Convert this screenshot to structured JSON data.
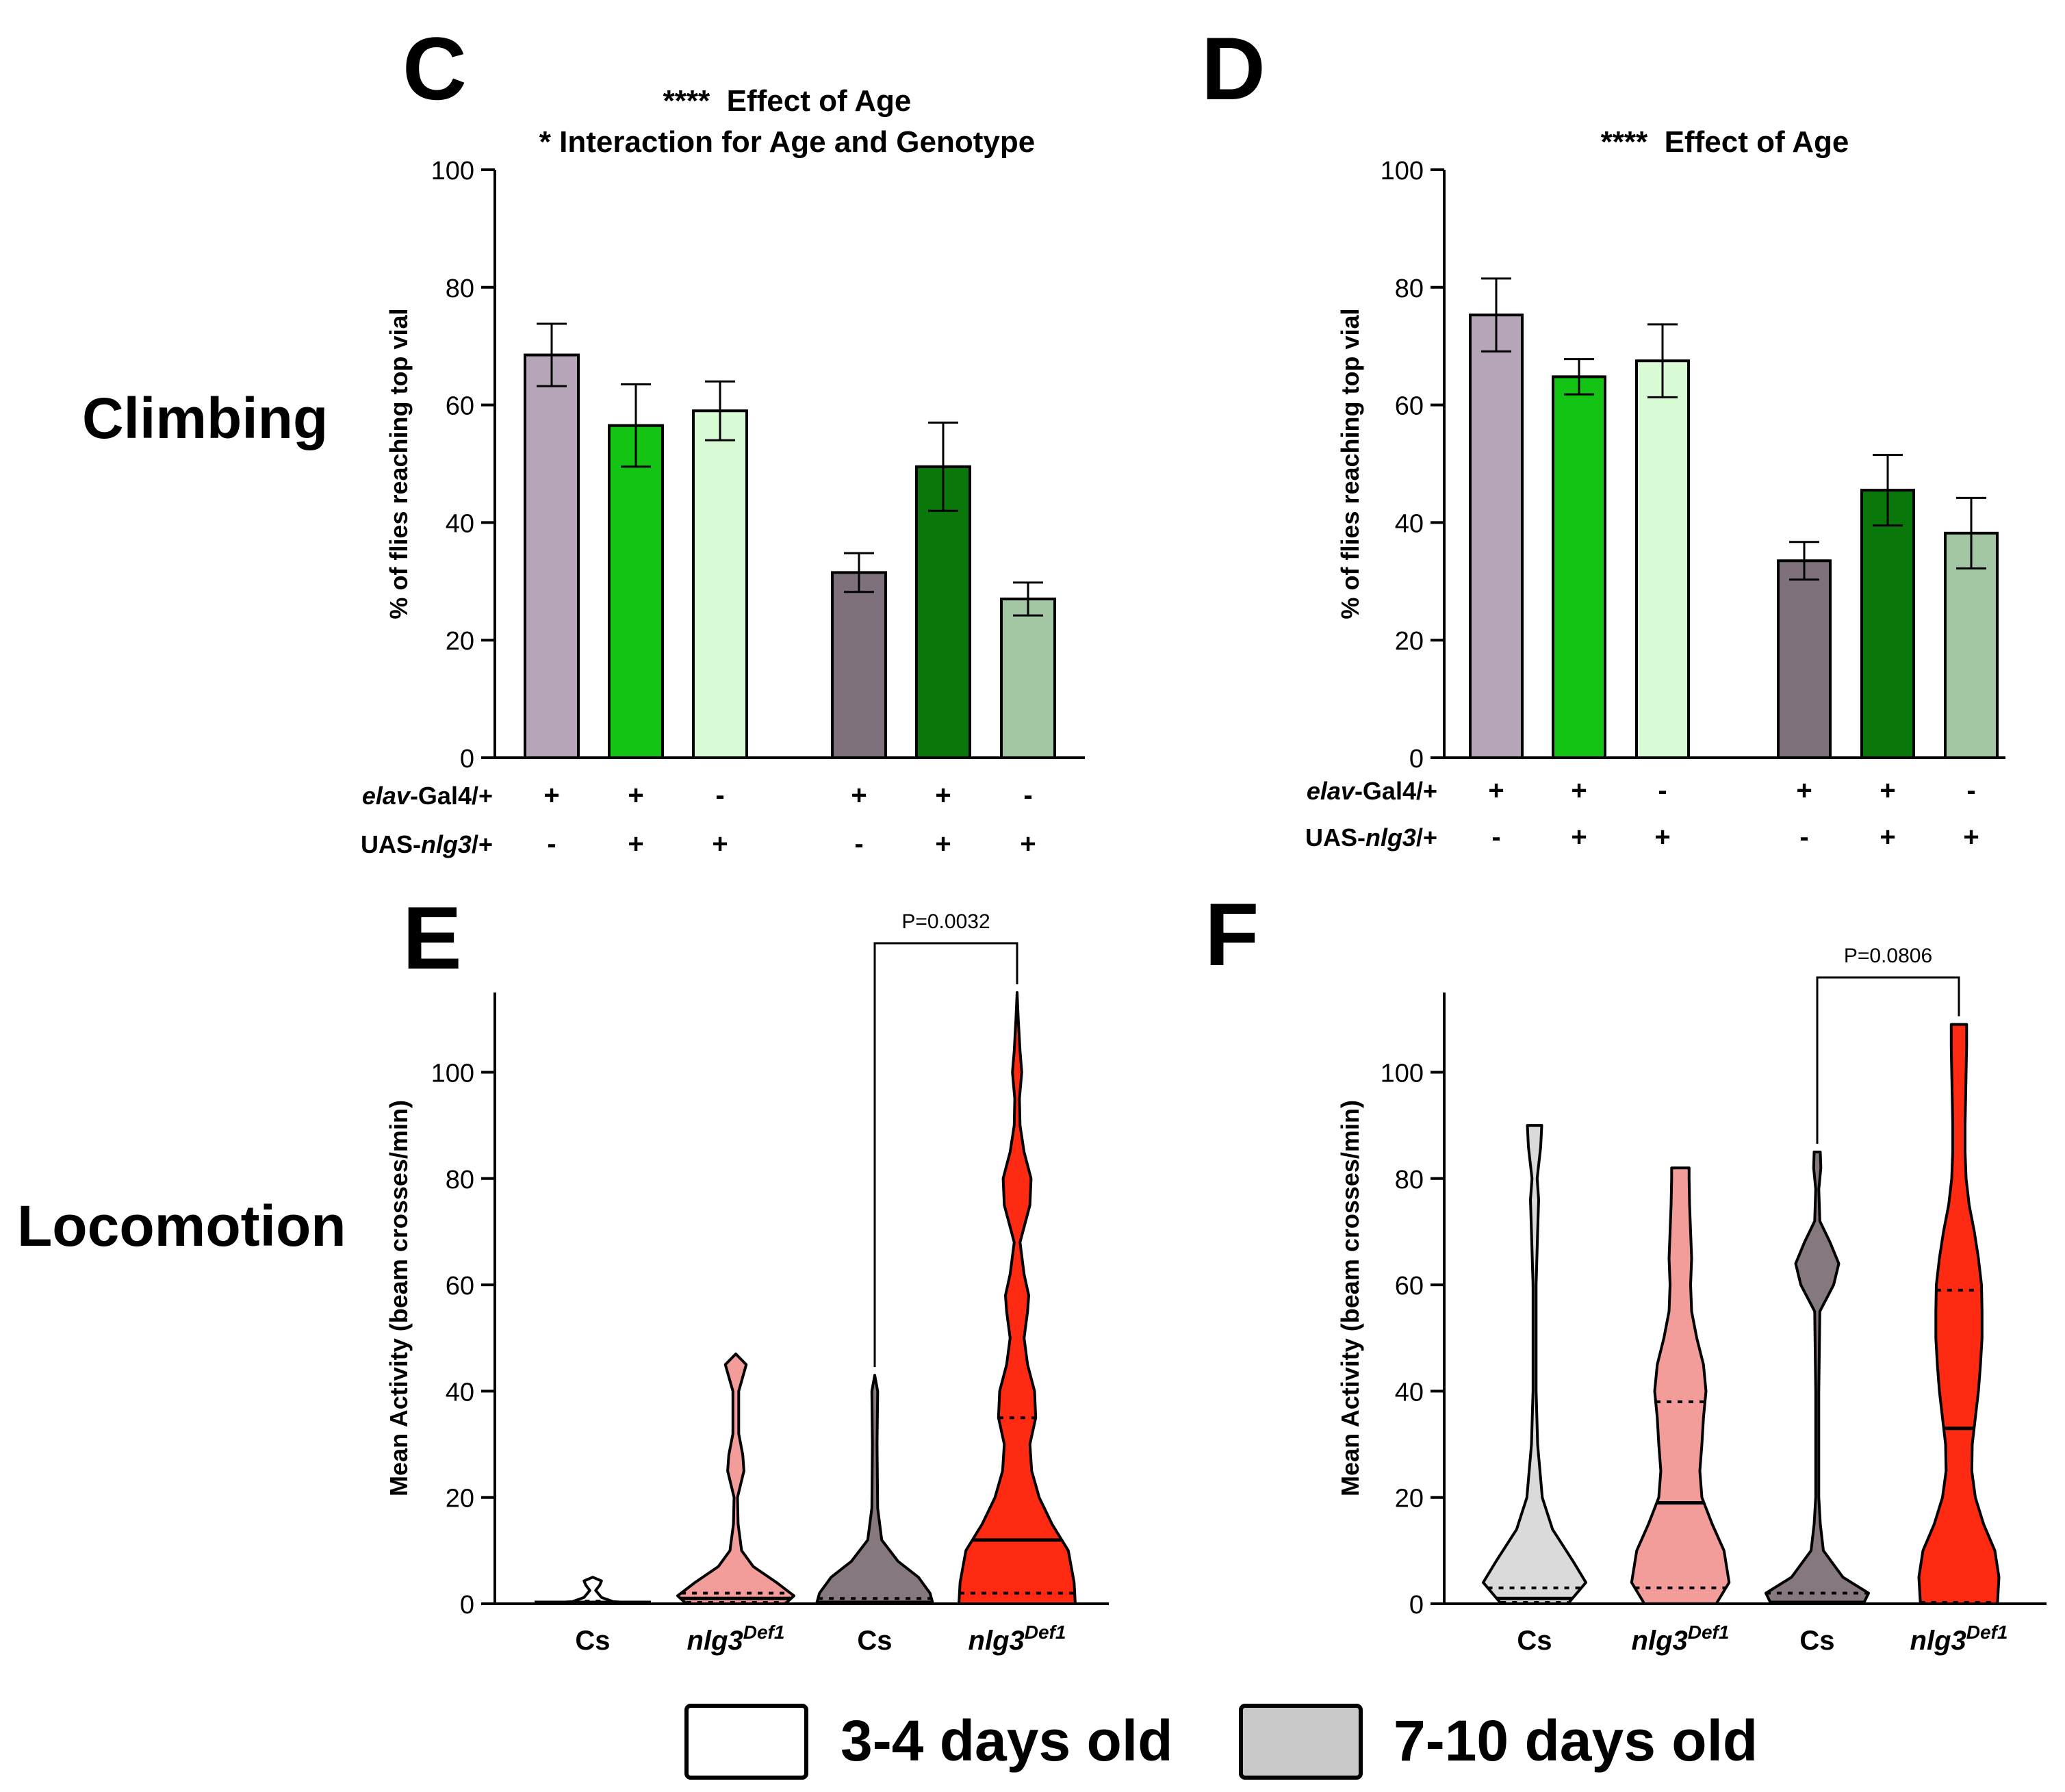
{
  "row_labels": {
    "climbing": "Climbing",
    "locomotion": "Locomotion"
  },
  "legend": {
    "items": [
      {
        "label": "3-4 days old",
        "color": "#ffffff"
      },
      {
        "label": "7-10 days old",
        "color": "#c8c8c8"
      }
    ]
  },
  "colors": {
    "young": [
      "#b6a5b8",
      "#14c414",
      "#d8fbd6"
    ],
    "old": [
      "#7e717c",
      "#0a770a",
      "#a3c6a3"
    ],
    "violin": [
      "#ffffff",
      "#f29d9a",
      "#85787f",
      "#ff2a12"
    ],
    "violin_old_panel": [
      "#dadada",
      "#f29d9a",
      "#85787f",
      "#ff2a12"
    ]
  },
  "genotype_rows": {
    "row1": {
      "prefix": "elav",
      "suffix": "-Gal4/+"
    },
    "row2": {
      "prefix": "UAS-",
      "italic": "nlg3",
      "suffix": "/+"
    }
  },
  "chart_data": [
    {
      "panel": "C",
      "type": "bar",
      "annotations": [
        "****  Effect of Age",
        "* Interaction for Age and Genotype"
      ],
      "ylabel": "% of flies reaching top vial",
      "ylim": [
        0,
        100
      ],
      "yticks": [
        "0",
        "20",
        "40",
        "60",
        "80",
        "100"
      ],
      "groups": [
        "3-4 days old",
        "7-10 days old"
      ],
      "values": [
        68.5,
        56.5,
        59,
        31.5,
        49.5,
        27
      ],
      "errors": [
        5.3,
        7,
        5,
        3.3,
        7.5,
        2.8
      ],
      "genotype_marks": {
        "row1": [
          "+",
          "+",
          "-",
          "+",
          "+",
          "-"
        ],
        "row2": [
          "-",
          "+",
          "+",
          "-",
          "+",
          "+"
        ]
      }
    },
    {
      "panel": "D",
      "type": "bar",
      "annotations": [
        "****  Effect of Age"
      ],
      "ylabel": "% of flies reaching top vial",
      "ylim": [
        0,
        100
      ],
      "yticks": [
        "0",
        "20",
        "40",
        "60",
        "80",
        "100"
      ],
      "groups": [
        "3-4 days old",
        "7-10 days old"
      ],
      "values": [
        75.3,
        64.8,
        67.5,
        33.5,
        45.5,
        38.2
      ],
      "errors": [
        6.2,
        3,
        6.2,
        3.2,
        6,
        6
      ],
      "genotype_marks": {
        "row1": [
          "+",
          "+",
          "-",
          "+",
          "+",
          "-"
        ],
        "row2": [
          "-",
          "+",
          "+",
          "-",
          "+",
          "+"
        ]
      }
    },
    {
      "panel": "E",
      "type": "violin",
      "ylabel": "Mean Activity (beam crosses/min)",
      "ylim": [
        0,
        115
      ],
      "yticks": [
        "0",
        "20",
        "40",
        "60",
        "80",
        "100"
      ],
      "categories": [
        "Cs",
        "nlg3",
        "Cs",
        "nlg3"
      ],
      "category_superscripts": [
        "",
        "Def1",
        "",
        "Def1"
      ],
      "violins": [
        {
          "max": 5,
          "median": 0,
          "q1": 0,
          "q3": 0.5,
          "profile": [
            [
              0,
              1
            ],
            [
              0.4,
              0.35
            ],
            [
              1.2,
              0.15
            ],
            [
              2.5,
              0.05
            ],
            [
              3.5,
              0.12
            ],
            [
              4.3,
              0.15
            ],
            [
              5,
              0
            ]
          ]
        },
        {
          "max": 47,
          "median": 1,
          "q1": 0,
          "q3": 2,
          "profile": [
            [
              0,
              0.85
            ],
            [
              1.5,
              1
            ],
            [
              4,
              0.7
            ],
            [
              7,
              0.3
            ],
            [
              10,
              0.1
            ],
            [
              15,
              0.04
            ],
            [
              20,
              0.03
            ],
            [
              25,
              0.14
            ],
            [
              28,
              0.12
            ],
            [
              32,
              0.05
            ],
            [
              40,
              0.05
            ],
            [
              45,
              0.18
            ],
            [
              47,
              0
            ]
          ]
        },
        {
          "max": 43,
          "median": 0,
          "q1": 0,
          "q3": 1,
          "profile": [
            [
              0,
              1
            ],
            [
              2,
              0.95
            ],
            [
              5,
              0.75
            ],
            [
              8,
              0.4
            ],
            [
              12,
              0.12
            ],
            [
              18,
              0.05
            ],
            [
              30,
              0.04
            ],
            [
              40,
              0.05
            ],
            [
              43,
              0
            ]
          ]
        },
        {
          "max": 115,
          "median": 12,
          "q1": 2,
          "q3": 35,
          "profile": [
            [
              0,
              1
            ],
            [
              4,
              0.98
            ],
            [
              10,
              0.88
            ],
            [
              15,
              0.6
            ],
            [
              20,
              0.38
            ],
            [
              25,
              0.25
            ],
            [
              30,
              0.22
            ],
            [
              35,
              0.32
            ],
            [
              40,
              0.3
            ],
            [
              45,
              0.18
            ],
            [
              50,
              0.12
            ],
            [
              55,
              0.18
            ],
            [
              58,
              0.2
            ],
            [
              62,
              0.12
            ],
            [
              68,
              0.05
            ],
            [
              75,
              0.22
            ],
            [
              80,
              0.24
            ],
            [
              85,
              0.12
            ],
            [
              90,
              0.05
            ],
            [
              95,
              0.04
            ],
            [
              100,
              0.08
            ],
            [
              104,
              0.05
            ],
            [
              110,
              0.02
            ],
            [
              115,
              0
            ]
          ]
        }
      ],
      "comparison": {
        "label": "P=0.0032",
        "between": [
          2,
          3
        ]
      }
    },
    {
      "panel": "F",
      "type": "violin",
      "ylabel": "Mean Activity (beam crosses/min)",
      "ylim": [
        0,
        115
      ],
      "yticks": [
        "0",
        "20",
        "40",
        "60",
        "80",
        "100"
      ],
      "categories": [
        "Cs",
        "nlg3",
        "Cs",
        "nlg3"
      ],
      "category_superscripts": [
        "",
        "Def1",
        "",
        "Def1"
      ],
      "violins": [
        {
          "max": 90,
          "median": 1,
          "q1": 0,
          "q3": 3,
          "profile": [
            [
              0,
              0.65
            ],
            [
              4,
              1
            ],
            [
              8,
              0.75
            ],
            [
              14,
              0.35
            ],
            [
              20,
              0.15
            ],
            [
              30,
              0.06
            ],
            [
              40,
              0.03
            ],
            [
              50,
              0.03
            ],
            [
              60,
              0.03
            ],
            [
              70,
              0.06
            ],
            [
              76,
              0.08
            ],
            [
              80,
              0.05
            ],
            [
              86,
              0.12
            ],
            [
              90,
              0.14
            ]
          ]
        },
        {
          "max": 82,
          "median": 19,
          "q1": 3,
          "q3": 38,
          "profile": [
            [
              0,
              0.7
            ],
            [
              4,
              0.95
            ],
            [
              10,
              0.85
            ],
            [
              15,
              0.62
            ],
            [
              20,
              0.42
            ],
            [
              25,
              0.38
            ],
            [
              30,
              0.42
            ],
            [
              35,
              0.45
            ],
            [
              40,
              0.5
            ],
            [
              45,
              0.45
            ],
            [
              50,
              0.32
            ],
            [
              55,
              0.22
            ],
            [
              60,
              0.2
            ],
            [
              65,
              0.22
            ],
            [
              70,
              0.2
            ],
            [
              75,
              0.18
            ],
            [
              80,
              0.17
            ],
            [
              82,
              0.17
            ]
          ]
        },
        {
          "max": 85,
          "median": 0,
          "q1": 0,
          "q3": 2,
          "profile": [
            [
              0,
              0.9
            ],
            [
              2,
              1
            ],
            [
              5,
              0.5
            ],
            [
              10,
              0.12
            ],
            [
              15,
              0.06
            ],
            [
              20,
              0.03
            ],
            [
              40,
              0.03
            ],
            [
              55,
              0.05
            ],
            [
              60,
              0.32
            ],
            [
              64,
              0.42
            ],
            [
              68,
              0.25
            ],
            [
              72,
              0.05
            ],
            [
              78,
              0.03
            ],
            [
              82,
              0.07
            ],
            [
              85,
              0.06
            ]
          ]
        },
        {
          "max": 109,
          "median": 33,
          "q1": 0,
          "q3": 59,
          "profile": [
            [
              0,
              0.75
            ],
            [
              5,
              0.78
            ],
            [
              10,
              0.7
            ],
            [
              15,
              0.48
            ],
            [
              20,
              0.32
            ],
            [
              25,
              0.25
            ],
            [
              30,
              0.26
            ],
            [
              35,
              0.32
            ],
            [
              40,
              0.38
            ],
            [
              45,
              0.42
            ],
            [
              50,
              0.45
            ],
            [
              55,
              0.45
            ],
            [
              60,
              0.44
            ],
            [
              65,
              0.38
            ],
            [
              70,
              0.3
            ],
            [
              75,
              0.2
            ],
            [
              80,
              0.14
            ],
            [
              85,
              0.12
            ],
            [
              90,
              0.12
            ],
            [
              95,
              0.13
            ],
            [
              100,
              0.14
            ],
            [
              105,
              0.15
            ],
            [
              109,
              0.15
            ]
          ]
        }
      ],
      "comparison": {
        "label": "P=0.0806",
        "between": [
          2,
          3
        ]
      }
    }
  ]
}
